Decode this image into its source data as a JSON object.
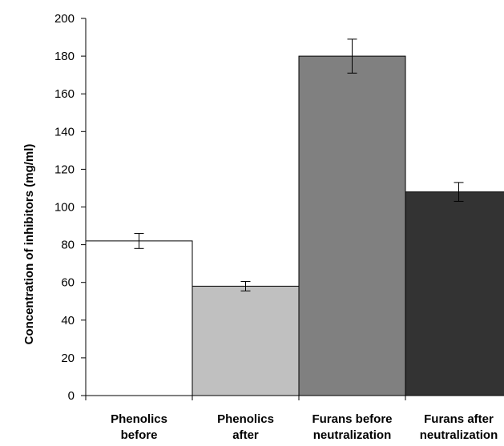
{
  "chart_data": {
    "type": "bar",
    "title": "",
    "xlabel": "",
    "ylabel": "Concentration of inhibitors (mg/ml)",
    "ylim": [
      0,
      200
    ],
    "yticks": [
      0,
      20,
      40,
      60,
      80,
      100,
      120,
      140,
      160,
      180,
      200
    ],
    "grid": false,
    "legend": "none",
    "categories": [
      [
        "Phenolics",
        "before"
      ],
      [
        "Phenolics",
        "after"
      ],
      [
        "Furans before",
        "neutralization"
      ],
      [
        "Furans after",
        "neutralization"
      ]
    ],
    "values": [
      82,
      58,
      180,
      108
    ],
    "errors": [
      4,
      2.5,
      9,
      5
    ],
    "colors": [
      "#ffffff",
      "#c0c0c0",
      "#808080",
      "#333333"
    ]
  }
}
